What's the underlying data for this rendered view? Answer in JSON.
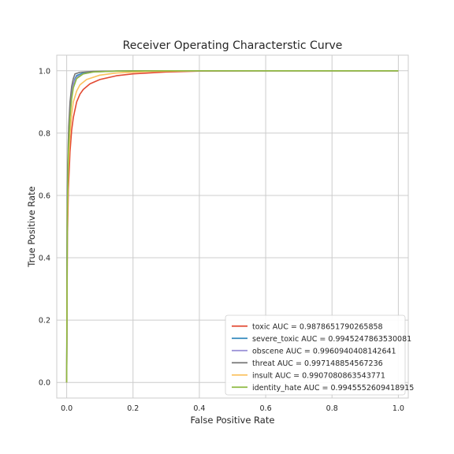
{
  "chart_data": {
    "type": "line",
    "title": "Receiver Operating Characterstic Curve",
    "xlabel": "False Positive Rate",
    "ylabel": "True Positive Rate",
    "xlim": [
      -0.03,
      1.03
    ],
    "ylim": [
      -0.05,
      1.05
    ],
    "xticks": [
      "0.0",
      "0.2",
      "0.4",
      "0.6",
      "0.8",
      "1.0"
    ],
    "yticks": [
      "0.0",
      "0.2",
      "0.4",
      "0.6",
      "0.8",
      "1.0"
    ],
    "grid": true,
    "legend_position": "lower-right",
    "series": [
      {
        "name": "toxic AUC = 0.9878651790265858",
        "color": "#e24a33",
        "x": [
          0,
          0.002,
          0.005,
          0.01,
          0.015,
          0.02,
          0.03,
          0.04,
          0.05,
          0.07,
          0.1,
          0.15,
          0.2,
          0.3,
          0.4,
          0.6,
          1.0
        ],
        "y": [
          0,
          0.45,
          0.62,
          0.74,
          0.81,
          0.85,
          0.9,
          0.925,
          0.94,
          0.958,
          0.972,
          0.984,
          0.99,
          0.996,
          0.999,
          1.0,
          1.0
        ]
      },
      {
        "name": "severe_toxic AUC = 0.9945247863530081",
        "color": "#348abd",
        "x": [
          0,
          0.002,
          0.005,
          0.01,
          0.015,
          0.02,
          0.025,
          0.03,
          0.05,
          0.08,
          0.15,
          0.3,
          1.0
        ],
        "y": [
          0,
          0.55,
          0.75,
          0.86,
          0.92,
          0.955,
          0.975,
          0.985,
          0.993,
          0.997,
          0.999,
          1.0,
          1.0
        ]
      },
      {
        "name": "obscene AUC = 0.9960940408142641",
        "color": "#988ed5",
        "x": [
          0,
          0.002,
          0.005,
          0.01,
          0.015,
          0.02,
          0.03,
          0.05,
          0.08,
          0.15,
          0.3,
          1.0
        ],
        "y": [
          0,
          0.6,
          0.78,
          0.88,
          0.93,
          0.96,
          0.98,
          0.99,
          0.996,
          0.999,
          1.0,
          1.0
        ]
      },
      {
        "name": "threat AUC = 0.997148854567236",
        "color": "#777777",
        "x": [
          0,
          0.001,
          0.003,
          0.006,
          0.01,
          0.015,
          0.02,
          0.025,
          0.04,
          0.08,
          0.2,
          1.0
        ],
        "y": [
          0,
          0.5,
          0.7,
          0.82,
          0.9,
          0.95,
          0.975,
          0.99,
          0.995,
          0.998,
          1.0,
          1.0
        ]
      },
      {
        "name": "insult AUC = 0.9907080863543771",
        "color": "#fbc15e",
        "x": [
          0,
          0.002,
          0.005,
          0.01,
          0.015,
          0.02,
          0.03,
          0.04,
          0.06,
          0.1,
          0.15,
          0.25,
          0.4,
          1.0
        ],
        "y": [
          0,
          0.5,
          0.68,
          0.8,
          0.86,
          0.9,
          0.935,
          0.955,
          0.972,
          0.986,
          0.993,
          0.998,
          1.0,
          1.0
        ]
      },
      {
        "name": "identity_hate AUC = 0.9945552609418915",
        "color": "#8eba42",
        "x": [
          0,
          0.002,
          0.005,
          0.01,
          0.015,
          0.02,
          0.03,
          0.05,
          0.08,
          0.15,
          0.3,
          1.0
        ],
        "y": [
          0,
          0.55,
          0.74,
          0.85,
          0.91,
          0.945,
          0.975,
          0.99,
          0.996,
          0.999,
          1.0,
          1.0
        ]
      }
    ]
  }
}
